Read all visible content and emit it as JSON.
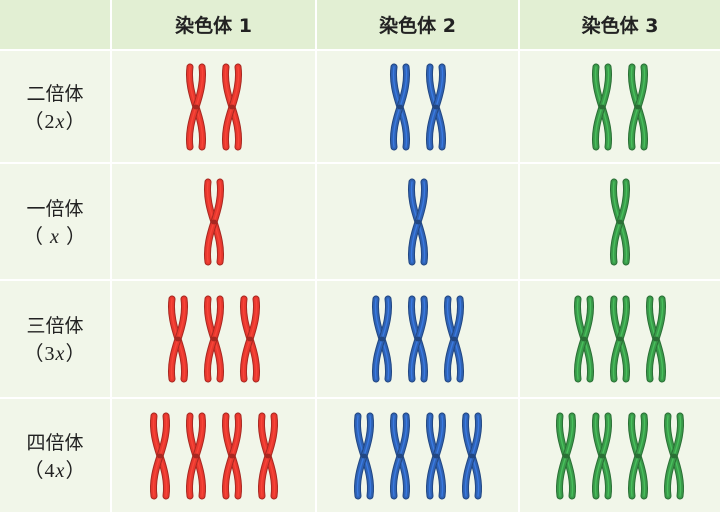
{
  "header": {
    "corner": "",
    "columns": [
      "染色体 1",
      "染色体 2",
      "染色体 3"
    ]
  },
  "rows": [
    {
      "name": "二倍体",
      "ploidy_prefix": "（",
      "ploidy_num": "2",
      "ploidy_var": "x",
      "ploidy_suffix": "）",
      "count": 2
    },
    {
      "name": "一倍体",
      "ploidy_prefix": "（ ",
      "ploidy_num": "",
      "ploidy_var": "x",
      "ploidy_suffix": " ）",
      "count": 1
    },
    {
      "name": "三倍体",
      "ploidy_prefix": "（",
      "ploidy_num": "3",
      "ploidy_var": "x",
      "ploidy_suffix": "）",
      "count": 3
    },
    {
      "name": "四倍体",
      "ploidy_prefix": "（",
      "ploidy_num": "4",
      "ploidy_var": "x",
      "ploidy_suffix": "）",
      "count": 4
    }
  ],
  "colors": {
    "chromosome_1": "#e8382e",
    "chromosome_2": "#2f62b4",
    "chromosome_3": "#3a9a4a",
    "cell_background": "#f1f6e9",
    "header_background": "#e2efd3"
  }
}
